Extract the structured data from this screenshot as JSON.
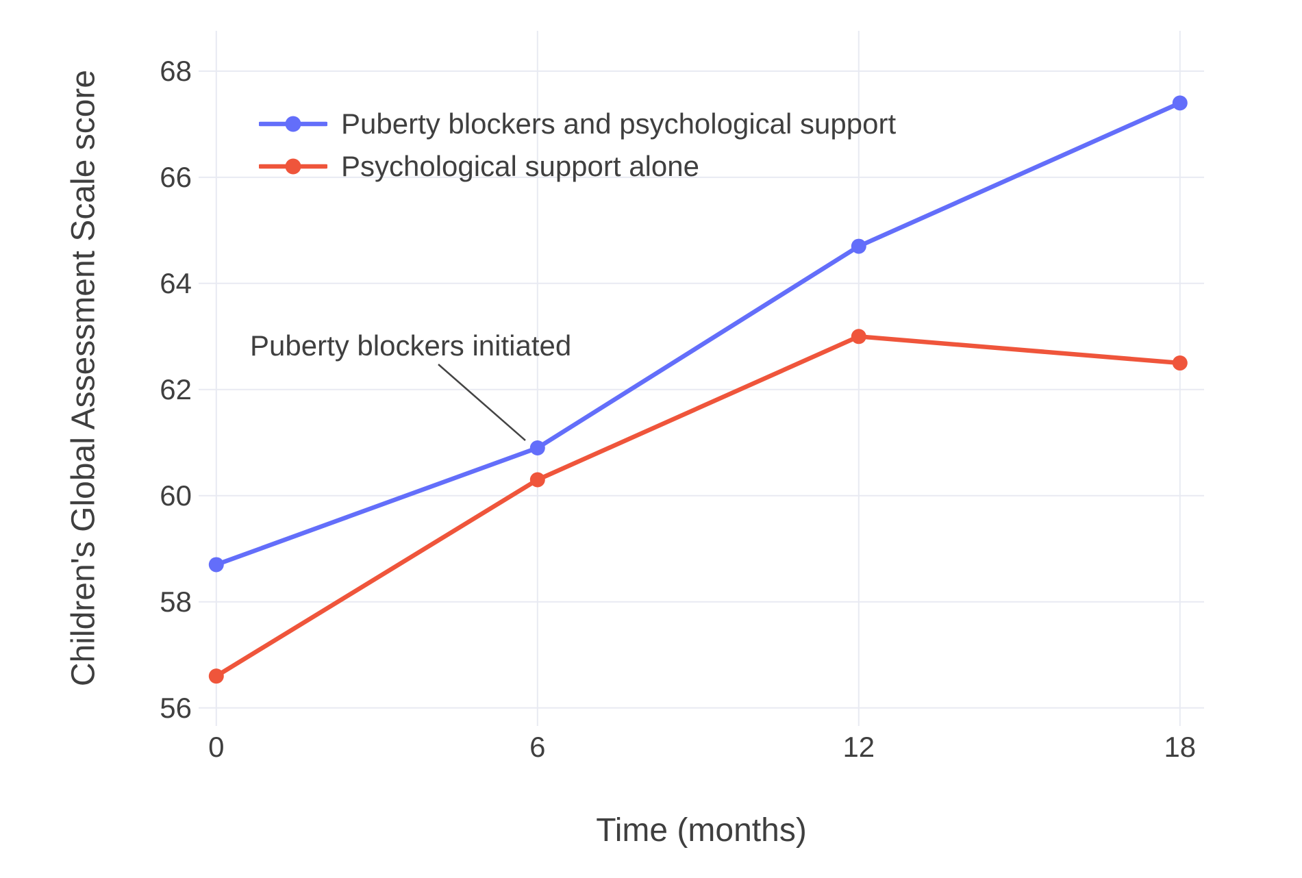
{
  "chart_data": {
    "type": "line",
    "title": "",
    "xlabel": "Time (months)",
    "ylabel": "Children's Global Assessment Scale score",
    "x": [
      0,
      6,
      12,
      18
    ],
    "xtick_labels": [
      "0",
      "6",
      "12",
      "18"
    ],
    "ytick_values": [
      56,
      58,
      60,
      62,
      64,
      66,
      68
    ],
    "ytick_labels": [
      "56",
      "58",
      "60",
      "62",
      "64",
      "66",
      "68"
    ],
    "xlim": [
      -0.33,
      18.45
    ],
    "ylim": [
      55.66,
      68.76
    ],
    "grid": true,
    "legend_position": "inside-top-left",
    "series": [
      {
        "name": "Puberty blockers and psychological support",
        "color": "#636EFA",
        "x": [
          0,
          6,
          12,
          18
        ],
        "values": [
          58.7,
          60.9,
          64.7,
          67.4
        ]
      },
      {
        "name": "Psychological support alone",
        "color": "#EF553B",
        "x": [
          0,
          6,
          12,
          18
        ],
        "values": [
          56.6,
          60.3,
          63.0,
          62.5
        ]
      }
    ],
    "annotation": {
      "text": "Puberty blockers initiated",
      "target": {
        "x": 6,
        "y": 60.9,
        "series": "Puberty blockers and psychological support"
      }
    }
  },
  "colors": {
    "background": "#ffffff",
    "gridline": "#e8eaf2",
    "text": "#3f3f3f",
    "annotation_line": "#444444",
    "series_blue": "#636EFA",
    "series_red": "#EF553B"
  }
}
